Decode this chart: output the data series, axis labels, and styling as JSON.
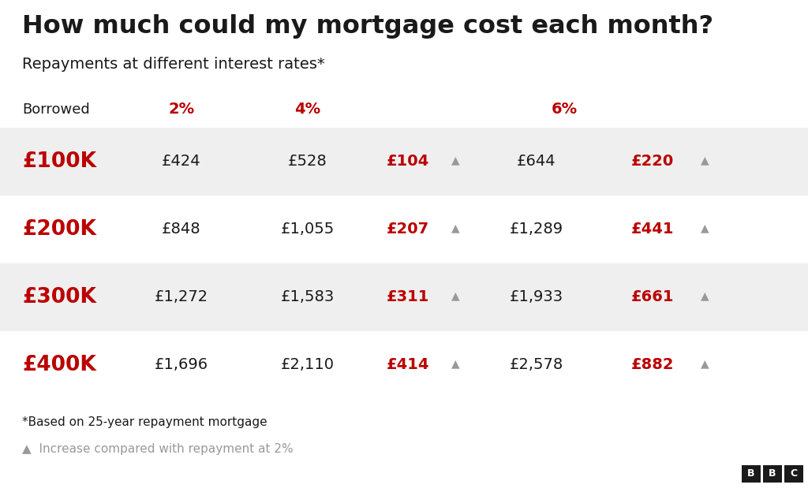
{
  "title": "How much could my mortgage cost each month?",
  "subtitle": "Repayments at different interest rates*",
  "bg_color": "#ffffff",
  "row_bg_colors": [
    "#efefef",
    "#ffffff",
    "#efefef",
    "#ffffff"
  ],
  "red_color": "#bb0000",
  "dark_color": "#1a1a1a",
  "gray_color": "#999999",
  "rows": [
    {
      "borrowed": "£100K",
      "rate2": "£424",
      "rate4": "£528",
      "diff4": "£104",
      "rate6": "£644",
      "diff6": "£220"
    },
    {
      "borrowed": "£200K",
      "rate2": "£848",
      "rate4": "£1,055",
      "diff4": "£207",
      "rate6": "£1,289",
      "diff6": "£441"
    },
    {
      "borrowed": "£300K",
      "rate2": "£1,272",
      "rate4": "£1,583",
      "diff4": "£311",
      "rate6": "£1,933",
      "diff6": "£661"
    },
    {
      "borrowed": "£400K",
      "rate2": "£1,696",
      "rate4": "£2,110",
      "diff4": "£414",
      "rate6": "£2,578",
      "diff6": "£882"
    }
  ],
  "footnote1": "*Based on 25-year repayment mortgage",
  "footnote2": "▲  Increase compared with repayment at 2%"
}
